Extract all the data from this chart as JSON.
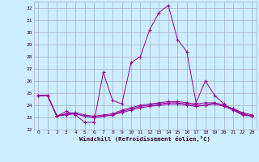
{
  "xlabel": "Windchill (Refroidissement éolien,°C)",
  "x": [
    0,
    1,
    2,
    3,
    4,
    5,
    6,
    7,
    8,
    9,
    10,
    11,
    12,
    13,
    14,
    15,
    16,
    17,
    18,
    19,
    20,
    21,
    22,
    23
  ],
  "series1": [
    24.8,
    24.8,
    23.1,
    23.5,
    23.2,
    22.6,
    22.6,
    26.7,
    24.4,
    24.1,
    27.5,
    28.0,
    30.2,
    31.6,
    32.2,
    29.4,
    28.4,
    24.2,
    26.0,
    24.8,
    24.1,
    23.6,
    23.2,
    23.1
  ],
  "series2": [
    24.8,
    24.8,
    23.1,
    23.3,
    23.4,
    23.2,
    23.1,
    23.2,
    23.3,
    23.6,
    23.8,
    24.0,
    24.1,
    24.2,
    24.3,
    24.3,
    24.2,
    24.1,
    24.2,
    24.2,
    24.0,
    23.7,
    23.4,
    23.2
  ],
  "series3": [
    24.8,
    24.8,
    23.1,
    23.2,
    23.3,
    23.1,
    23.0,
    23.1,
    23.2,
    23.4,
    23.6,
    23.8,
    23.9,
    24.0,
    24.1,
    24.1,
    24.0,
    23.9,
    24.0,
    24.1,
    23.9,
    23.6,
    23.3,
    23.1
  ],
  "series4": [
    24.8,
    24.8,
    23.1,
    23.3,
    23.3,
    23.1,
    23.0,
    23.1,
    23.2,
    23.5,
    23.7,
    23.9,
    24.0,
    24.1,
    24.2,
    24.2,
    24.1,
    24.0,
    24.0,
    24.2,
    24.0,
    23.7,
    23.3,
    23.1
  ],
  "line_color": "#990099",
  "bg_color": "#cceeff",
  "grid_color": "#aaaacc",
  "ylim": [
    22,
    32.5
  ],
  "yticks": [
    22,
    23,
    24,
    25,
    26,
    27,
    28,
    29,
    30,
    31,
    32
  ],
  "xticks": [
    0,
    1,
    2,
    3,
    4,
    5,
    6,
    7,
    8,
    9,
    10,
    11,
    12,
    13,
    14,
    15,
    16,
    17,
    18,
    19,
    20,
    21,
    22,
    23
  ]
}
